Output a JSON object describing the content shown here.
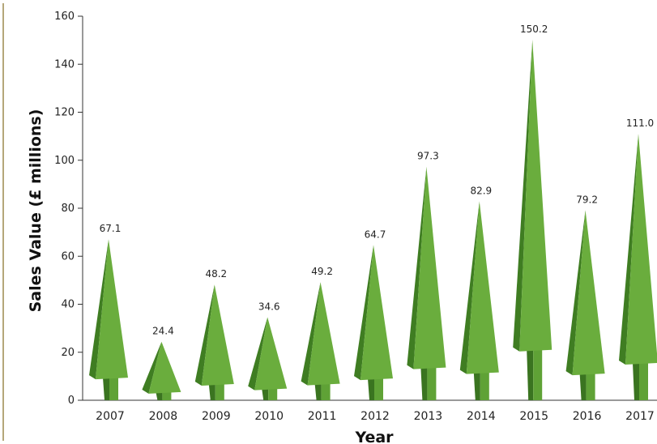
{
  "chart_data": {
    "type": "bar",
    "title": "",
    "xlabel": "Year",
    "ylabel": "Sales Value (£ millions)",
    "categories": [
      "2007",
      "2008",
      "2009",
      "2010",
      "2011",
      "2012",
      "2013",
      "2014",
      "2015",
      "2016",
      "2017"
    ],
    "values": [
      67.1,
      24.4,
      48.2,
      34.6,
      49.2,
      64.7,
      97.3,
      82.9,
      150.2,
      79.2,
      111.0
    ],
    "value_labels": [
      "67.1",
      "24.4",
      "48.2",
      "34.6",
      "49.2",
      "64.7",
      "97.3",
      "82.9",
      "150.2",
      "79.2",
      "111.0"
    ],
    "ylim": [
      0,
      160
    ],
    "yticks": [
      0,
      20,
      40,
      60,
      80,
      100,
      120,
      140,
      160
    ],
    "grid": false,
    "legend": "none",
    "mark_shape": "3d-tree",
    "colors": {
      "tree_light": "#6aad3d",
      "tree_dark": "#3f7d22",
      "trunk_light": "#5fa236",
      "trunk_dark": "#3a7420",
      "frame_line": "#b5a77a"
    }
  }
}
